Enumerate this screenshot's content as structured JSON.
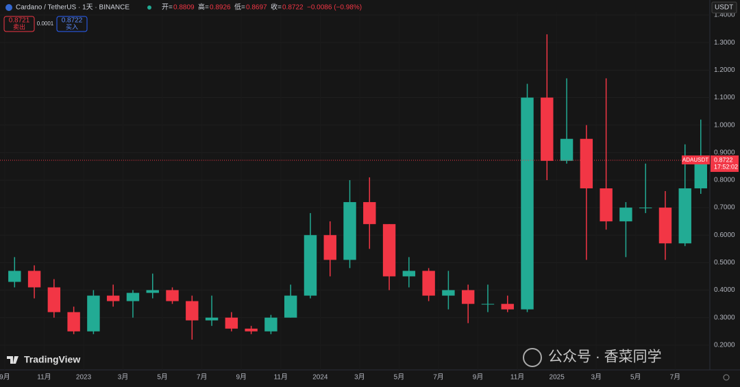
{
  "chart_data": {
    "type": "candlestick",
    "title": "Cardano / TetherUS · 1天 · BINANCE",
    "ohlc_legend": [
      {
        "label": "开=",
        "value": 0.8809
      },
      {
        "label": "高=",
        "value": 0.8926
      },
      {
        "label": "低=",
        "value": 0.8697
      },
      {
        "label": "收=",
        "value": 0.8722
      }
    ],
    "change": "−0.0086 (−0.98%)",
    "order": {
      "sell_price": 0.8721,
      "sell_label": "卖出",
      "spread": 0.0001,
      "buy_price": 0.8722,
      "buy_label": "买入"
    },
    "currency": "USDT",
    "symbol": "ADAUSDT",
    "last_price": 0.8722,
    "countdown": "17:52:02",
    "logo": "TradingView",
    "watermark": "公众号 · 香菜同学",
    "up_color": "#22ab94",
    "down_color": "#f23645",
    "x": [
      0.5,
      1.5,
      2.5,
      3.5,
      4.5,
      5.5,
      6.5,
      7.5,
      8.5,
      9.5,
      10.5,
      11.5,
      12.5,
      13.5,
      14.5,
      15.5,
      16.5,
      17.5,
      18.5,
      19.5,
      20.5,
      21.5,
      22.5,
      23.5,
      24.5,
      25.5,
      26.5,
      27.5,
      28.5,
      29.5,
      30.5,
      31.5,
      32.5,
      33.5,
      34.5,
      35.3
    ],
    "open": [
      0.43,
      0.47,
      0.41,
      0.32,
      0.25,
      0.38,
      0.36,
      0.39,
      0.4,
      0.36,
      0.29,
      0.3,
      0.26,
      0.25,
      0.3,
      0.38,
      0.6,
      0.51,
      0.72,
      0.64,
      0.45,
      0.47,
      0.38,
      0.4,
      0.35,
      0.35,
      0.33,
      1.1,
      0.87,
      0.95,
      0.77,
      0.65,
      0.7,
      0.7,
      0.57,
      0.77
    ],
    "high": [
      0.52,
      0.49,
      0.44,
      0.34,
      0.4,
      0.42,
      0.4,
      0.46,
      0.41,
      0.38,
      0.38,
      0.32,
      0.27,
      0.31,
      0.42,
      0.68,
      0.65,
      0.8,
      0.81,
      0.64,
      0.52,
      0.48,
      0.47,
      0.42,
      0.42,
      0.38,
      1.15,
      1.33,
      1.17,
      1.0,
      1.17,
      0.72,
      0.86,
      0.76,
      0.93,
      1.02
    ],
    "low": [
      0.41,
      0.37,
      0.3,
      0.24,
      0.24,
      0.34,
      0.3,
      0.37,
      0.35,
      0.22,
      0.27,
      0.25,
      0.24,
      0.24,
      0.3,
      0.37,
      0.45,
      0.48,
      0.55,
      0.4,
      0.41,
      0.36,
      0.33,
      0.28,
      0.32,
      0.32,
      0.32,
      0.8,
      0.86,
      0.51,
      0.62,
      0.52,
      0.68,
      0.51,
      0.56,
      0.75
    ],
    "close": [
      0.47,
      0.41,
      0.32,
      0.25,
      0.38,
      0.36,
      0.39,
      0.4,
      0.36,
      0.29,
      0.3,
      0.26,
      0.25,
      0.3,
      0.38,
      0.6,
      0.51,
      0.72,
      0.64,
      0.45,
      0.47,
      0.38,
      0.4,
      0.35,
      0.35,
      0.33,
      1.1,
      0.87,
      0.95,
      0.77,
      0.65,
      0.7,
      0.7,
      0.57,
      0.77,
      0.8722
    ],
    "xlim": [
      -0.24,
      35.76
    ],
    "xticks": [
      {
        "value": 0,
        "label": "9月"
      },
      {
        "value": 2,
        "label": "11月"
      },
      {
        "value": 4,
        "label": "2023"
      },
      {
        "value": 6,
        "label": "3月"
      },
      {
        "value": 8,
        "label": "5月"
      },
      {
        "value": 10,
        "label": "7月"
      },
      {
        "value": 12,
        "label": "9月"
      },
      {
        "value": 14,
        "label": "11月"
      },
      {
        "value": 16,
        "label": "2024"
      },
      {
        "value": 18,
        "label": "3月"
      },
      {
        "value": 20,
        "label": "5月"
      },
      {
        "value": 22,
        "label": "7月"
      },
      {
        "value": 24,
        "label": "9月"
      },
      {
        "value": 26,
        "label": "11月"
      },
      {
        "value": 28,
        "label": "2025"
      },
      {
        "value": 30,
        "label": "3月"
      },
      {
        "value": 32,
        "label": "5月"
      },
      {
        "value": 34,
        "label": "7月"
      }
    ],
    "ylim": [
      0.11,
      1.41
    ],
    "yticks": [
      {
        "value": 0.2,
        "label": "0.2000"
      },
      {
        "value": 0.3,
        "label": "0.3000"
      },
      {
        "value": 0.4,
        "label": "0.4000"
      },
      {
        "value": 0.5,
        "label": "0.5000"
      },
      {
        "value": 0.6,
        "label": "0.6000"
      },
      {
        "value": 0.7,
        "label": "0.7000"
      },
      {
        "value": 0.8,
        "label": "0.8000"
      },
      {
        "value": 0.9,
        "label": "0.9000"
      },
      {
        "value": 1.0,
        "label": "1.0000"
      },
      {
        "value": 1.1,
        "label": "1.1000"
      },
      {
        "value": 1.2,
        "label": "1.2000"
      },
      {
        "value": 1.3,
        "label": "1.3000"
      },
      {
        "value": 1.4,
        "label": "1.4000"
      }
    ],
    "grid": true
  }
}
